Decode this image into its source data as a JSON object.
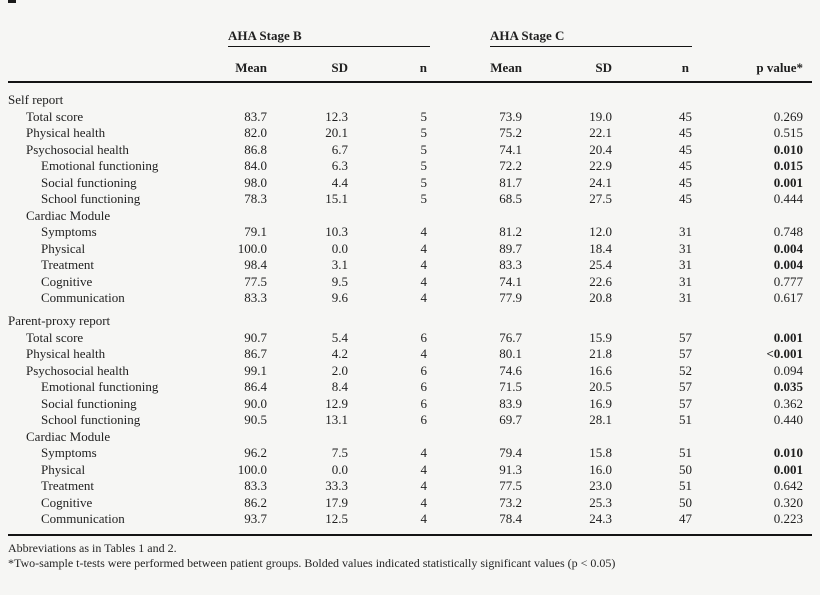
{
  "colors": {
    "background": "#f6f6f4",
    "text": "#1f1f1f",
    "rule": "#141414"
  },
  "table": {
    "group_headers": [
      {
        "label": "AHA Stage B"
      },
      {
        "label": "AHA Stage C"
      }
    ],
    "columns": [
      "Mean",
      "SD",
      "n",
      "Mean",
      "SD",
      "n",
      "p value*"
    ],
    "rows": [
      {
        "type": "section",
        "indent": 0,
        "label": "Self report"
      },
      {
        "type": "data",
        "indent": 1,
        "label": "Total score",
        "b_mean": "83.7",
        "b_sd": "12.3",
        "b_n": "5",
        "c_mean": "73.9",
        "c_sd": "19.0",
        "c_n": "45",
        "p": "0.269",
        "p_bold": false
      },
      {
        "type": "data",
        "indent": 1,
        "label": "Physical health",
        "b_mean": "82.0",
        "b_sd": "20.1",
        "b_n": "5",
        "c_mean": "75.2",
        "c_sd": "22.1",
        "c_n": "45",
        "p": "0.515",
        "p_bold": false
      },
      {
        "type": "data",
        "indent": 1,
        "label": "Psychosocial health",
        "b_mean": "86.8",
        "b_sd": "6.7",
        "b_n": "5",
        "c_mean": "74.1",
        "c_sd": "20.4",
        "c_n": "45",
        "p": "0.010",
        "p_bold": true
      },
      {
        "type": "data",
        "indent": 2,
        "label": "Emotional functioning",
        "b_mean": "84.0",
        "b_sd": "6.3",
        "b_n": "5",
        "c_mean": "72.2",
        "c_sd": "22.9",
        "c_n": "45",
        "p": "0.015",
        "p_bold": true
      },
      {
        "type": "data",
        "indent": 2,
        "label": "Social functioning",
        "b_mean": "98.0",
        "b_sd": "4.4",
        "b_n": "5",
        "c_mean": "81.7",
        "c_sd": "24.1",
        "c_n": "45",
        "p": "0.001",
        "p_bold": true
      },
      {
        "type": "data",
        "indent": 2,
        "label": "School functioning",
        "b_mean": "78.3",
        "b_sd": "15.1",
        "b_n": "5",
        "c_mean": "68.5",
        "c_sd": "27.5",
        "c_n": "45",
        "p": "0.444",
        "p_bold": false
      },
      {
        "type": "subsection",
        "indent": 1,
        "label": "Cardiac Module"
      },
      {
        "type": "data",
        "indent": 2,
        "label": "Symptoms",
        "b_mean": "79.1",
        "b_sd": "10.3",
        "b_n": "4",
        "c_mean": "81.2",
        "c_sd": "12.0",
        "c_n": "31",
        "p": "0.748",
        "p_bold": false
      },
      {
        "type": "data",
        "indent": 2,
        "label": "Physical",
        "b_mean": "100.0",
        "b_sd": "0.0",
        "b_n": "4",
        "c_mean": "89.7",
        "c_sd": "18.4",
        "c_n": "31",
        "p": "0.004",
        "p_bold": true
      },
      {
        "type": "data",
        "indent": 2,
        "label": "Treatment",
        "b_mean": "98.4",
        "b_sd": "3.1",
        "b_n": "4",
        "c_mean": "83.3",
        "c_sd": "25.4",
        "c_n": "31",
        "p": "0.004",
        "p_bold": true
      },
      {
        "type": "data",
        "indent": 2,
        "label": "Cognitive",
        "b_mean": "77.5",
        "b_sd": "9.5",
        "b_n": "4",
        "c_mean": "74.1",
        "c_sd": "22.6",
        "c_n": "31",
        "p": "0.777",
        "p_bold": false
      },
      {
        "type": "data",
        "indent": 2,
        "label": "Communication",
        "b_mean": "83.3",
        "b_sd": "9.6",
        "b_n": "4",
        "c_mean": "77.9",
        "c_sd": "20.8",
        "c_n": "31",
        "p": "0.617",
        "p_bold": false
      },
      {
        "type": "section",
        "indent": 0,
        "label": "Parent-proxy report",
        "gap_before": true
      },
      {
        "type": "data",
        "indent": 1,
        "label": "Total score",
        "b_mean": "90.7",
        "b_sd": "5.4",
        "b_n": "6",
        "c_mean": "76.7",
        "c_sd": "15.9",
        "c_n": "57",
        "p": "0.001",
        "p_bold": true
      },
      {
        "type": "data",
        "indent": 1,
        "label": "Physical health",
        "b_mean": "86.7",
        "b_sd": "4.2",
        "b_n": "4",
        "c_mean": "80.1",
        "c_sd": "21.8",
        "c_n": "57",
        "p": "<0.001",
        "p_bold": true
      },
      {
        "type": "data",
        "indent": 1,
        "label": "Psychosocial health",
        "b_mean": "99.1",
        "b_sd": "2.0",
        "b_n": "6",
        "c_mean": "74.6",
        "c_sd": "16.6",
        "c_n": "52",
        "p": "0.094",
        "p_bold": false
      },
      {
        "type": "data",
        "indent": 2,
        "label": "Emotional functioning",
        "b_mean": "86.4",
        "b_sd": "8.4",
        "b_n": "6",
        "c_mean": "71.5",
        "c_sd": "20.5",
        "c_n": "57",
        "p": "0.035",
        "p_bold": true
      },
      {
        "type": "data",
        "indent": 2,
        "label": "Social functioning",
        "b_mean": "90.0",
        "b_sd": "12.9",
        "b_n": "6",
        "c_mean": "83.9",
        "c_sd": "16.9",
        "c_n": "57",
        "p": "0.362",
        "p_bold": false
      },
      {
        "type": "data",
        "indent": 2,
        "label": "School functioning",
        "b_mean": "90.5",
        "b_sd": "13.1",
        "b_n": "6",
        "c_mean": "69.7",
        "c_sd": "28.1",
        "c_n": "51",
        "p": "0.440",
        "p_bold": false
      },
      {
        "type": "subsection",
        "indent": 1,
        "label": "Cardiac Module"
      },
      {
        "type": "data",
        "indent": 2,
        "label": "Symptoms",
        "b_mean": "96.2",
        "b_sd": "7.5",
        "b_n": "4",
        "c_mean": "79.4",
        "c_sd": "15.8",
        "c_n": "51",
        "p": "0.010",
        "p_bold": true
      },
      {
        "type": "data",
        "indent": 2,
        "label": "Physical",
        "b_mean": "100.0",
        "b_sd": "0.0",
        "b_n": "4",
        "c_mean": "91.3",
        "c_sd": "16.0",
        "c_n": "50",
        "p": "0.001",
        "p_bold": true
      },
      {
        "type": "data",
        "indent": 2,
        "label": "Treatment",
        "b_mean": "83.3",
        "b_sd": "33.3",
        "b_n": "4",
        "c_mean": "77.5",
        "c_sd": "23.0",
        "c_n": "51",
        "p": "0.642",
        "p_bold": false
      },
      {
        "type": "data",
        "indent": 2,
        "label": "Cognitive",
        "b_mean": "86.2",
        "b_sd": "17.9",
        "b_n": "4",
        "c_mean": "73.2",
        "c_sd": "25.3",
        "c_n": "50",
        "p": "0.320",
        "p_bold": false
      },
      {
        "type": "data",
        "indent": 2,
        "label": "Communication",
        "b_mean": "93.7",
        "b_sd": "12.5",
        "b_n": "4",
        "c_mean": "78.4",
        "c_sd": "24.3",
        "c_n": "47",
        "p": "0.223",
        "p_bold": false
      }
    ],
    "footnotes": [
      "Abbreviations as in Tables 1 and 2.",
      "*Two-sample t-tests were performed between patient groups. Bolded values indicated statistically significant values (p < 0.05)"
    ]
  }
}
